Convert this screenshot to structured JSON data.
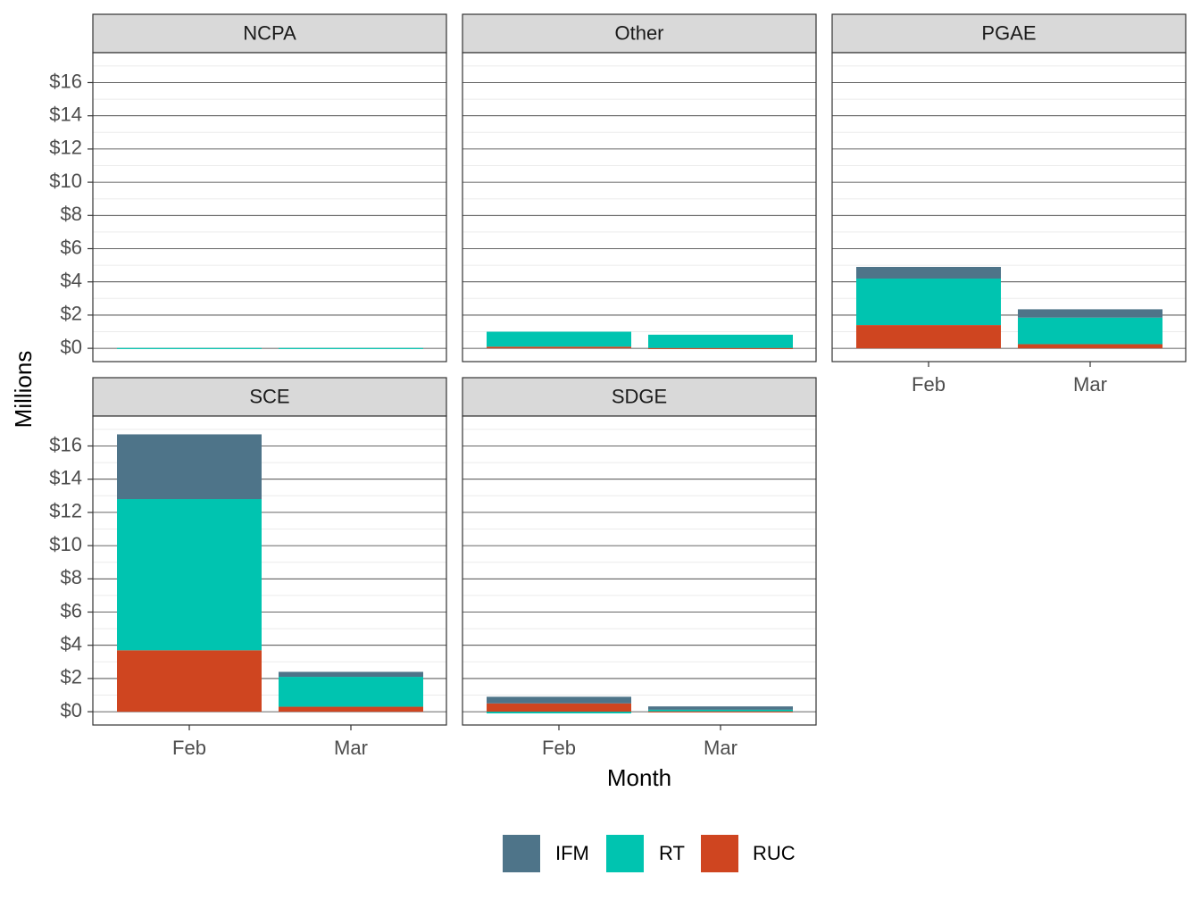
{
  "chart_data": {
    "type": "bar",
    "stacked": true,
    "facet_layout": "3 columns x 2 rows, x-axis labels shown at bottom of each column",
    "xlabel": "Month",
    "ylabel": "Millions",
    "ylim": [
      -0.8,
      17.8
    ],
    "y_ticks": [
      0,
      2,
      4,
      6,
      8,
      10,
      12,
      14,
      16
    ],
    "y_tick_labels": [
      "$0",
      "$2",
      "$4",
      "$6",
      "$8",
      "$10",
      "$12",
      "$14",
      "$16"
    ],
    "categories": [
      "Feb",
      "Mar"
    ],
    "series_names": [
      "IFM",
      "RT",
      "RUC"
    ],
    "colors": {
      "IFM": "#4e7489",
      "RT": "#00c4b0",
      "RUC": "#cf4520"
    },
    "stack_order_bottom_to_top": [
      "RUC",
      "RT",
      "IFM"
    ],
    "legend_position": "bottom",
    "facets": [
      {
        "name": "NCPA",
        "series": [
          {
            "name": "IFM",
            "values": [
              0,
              0
            ]
          },
          {
            "name": "RT",
            "values": [
              0.02,
              0.02
            ]
          },
          {
            "name": "RUC",
            "values": [
              0,
              0
            ]
          }
        ]
      },
      {
        "name": "Other",
        "series": [
          {
            "name": "IFM",
            "values": [
              0,
              0
            ]
          },
          {
            "name": "RT",
            "values": [
              0.9,
              0.8
            ]
          },
          {
            "name": "RUC",
            "values": [
              0.1,
              0.02
            ]
          }
        ]
      },
      {
        "name": "PGAE",
        "series": [
          {
            "name": "IFM",
            "values": [
              0.7,
              0.5
            ]
          },
          {
            "name": "RT",
            "values": [
              2.8,
              1.6
            ]
          },
          {
            "name": "RUC",
            "values": [
              1.4,
              0.25
            ]
          }
        ]
      },
      {
        "name": "SCE",
        "series": [
          {
            "name": "IFM",
            "values": [
              3.9,
              0.3
            ]
          },
          {
            "name": "RT",
            "values": [
              9.1,
              1.8
            ]
          },
          {
            "name": "RUC",
            "values": [
              3.7,
              0.3
            ]
          }
        ]
      },
      {
        "name": "SDGE",
        "series": [
          {
            "name": "IFM",
            "values": [
              0.4,
              0.2
            ]
          },
          {
            "name": "RT",
            "values": [
              -0.1,
              0.1
            ]
          },
          {
            "name": "RUC",
            "values": [
              0.5,
              0.02
            ]
          }
        ]
      }
    ]
  }
}
